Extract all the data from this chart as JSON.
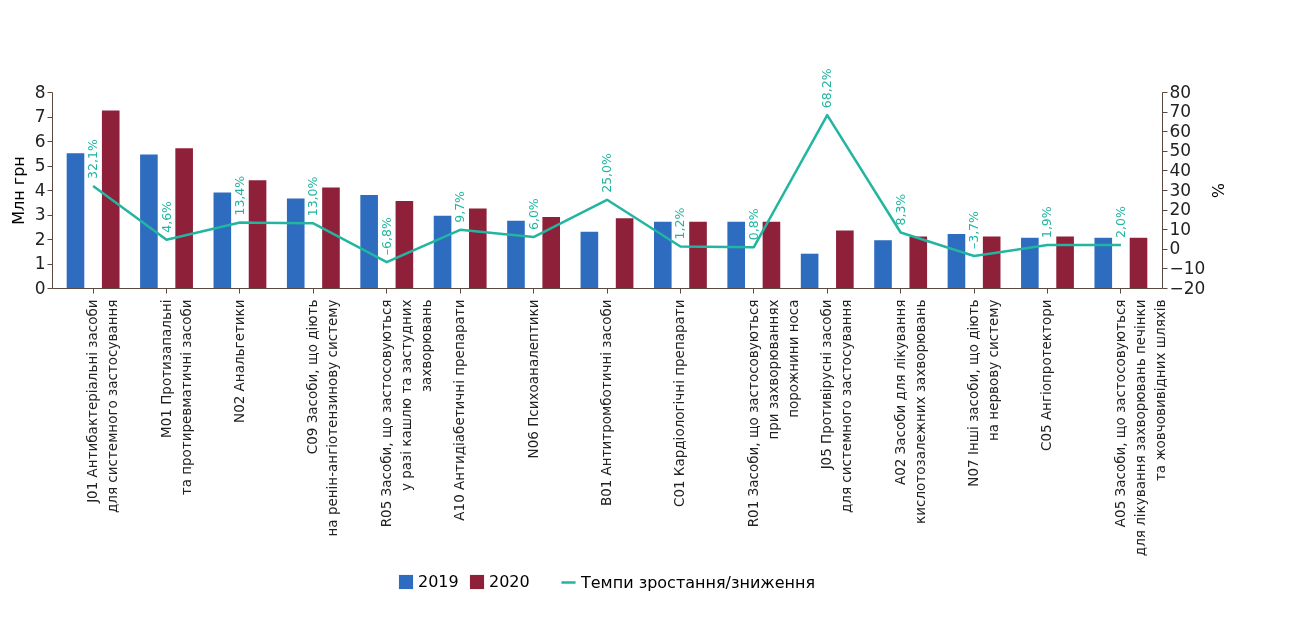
{
  "chart_data": {
    "type": "bar",
    "categories": [
      "J01 Антибактеріальні засоби\nдля системного застосування",
      "M01 Протизапальні\nта протиревматичні засоби",
      "N02 Анальгетики",
      "C09 Засоби, що діють\nна ренін-ангіотензинову систему",
      "R05 Засоби, що застосовуються\nу разі кашлю та застудних\nзахворювань",
      "A10 Антидіабетичні препарати",
      "N06 Психоаналептики",
      "B01 Антитромботичні засоби",
      "C01 Кардіологічні препарати",
      "R01 Засоби, що застосовуються\nпри захворюваннях\nпорожнини носа",
      "J05 Противірусні засоби\nдля системного застосування",
      "A02 Засоби для лікування\nкислотозалежних захворювань",
      "N07 Інші засоби, що діють\nна нервову систему",
      "C05 Ангіопротектори",
      "A05 Засоби, що застосовуються\nдля лікування захворювань печінки\nта жовчовивідних шляхів"
    ],
    "ylabel": "Млн грн",
    "y2label": "%",
    "ylim": [
      0,
      8
    ],
    "yticks": [
      0,
      1,
      2,
      3,
      4,
      5,
      6,
      7,
      8
    ],
    "y2lim": [
      -20,
      80
    ],
    "y2ticks": [
      -20,
      -10,
      0,
      10,
      20,
      30,
      40,
      50,
      60,
      70,
      80
    ],
    "legend": "bottom",
    "grid": false,
    "series": [
      {
        "name": "2019",
        "type": "bar",
        "color": "#2e6cc0",
        "values": [
          5.5,
          5.45,
          3.9,
          3.65,
          3.8,
          2.95,
          2.75,
          2.3,
          2.7,
          2.7,
          1.4,
          1.95,
          2.2,
          2.05,
          2.05
        ]
      },
      {
        "name": "2020",
        "type": "bar",
        "color": "#8e2139",
        "values": [
          7.25,
          5.7,
          4.4,
          4.1,
          3.55,
          3.25,
          2.9,
          2.85,
          2.7,
          2.7,
          2.35,
          2.1,
          2.1,
          2.1,
          2.05
        ]
      },
      {
        "name": "Темпи зростання/зниження",
        "type": "line",
        "axis": "y2",
        "color": "#22b5a0",
        "values": [
          32.1,
          4.6,
          13.4,
          13.0,
          -6.8,
          9.7,
          6.0,
          25.0,
          1.2,
          0.8,
          68.2,
          8.3,
          -3.7,
          1.9,
          2.0
        ],
        "value_labels": [
          "32,1%",
          "4,6%",
          "13,4%",
          "13,0%",
          "–6,8%",
          "9,7%",
          "6,0%",
          "25,0%",
          "1,2%",
          "0,8%",
          "68,2%",
          "8,3%",
          "–3,7%",
          "1,9%",
          "2,0%"
        ]
      }
    ]
  }
}
